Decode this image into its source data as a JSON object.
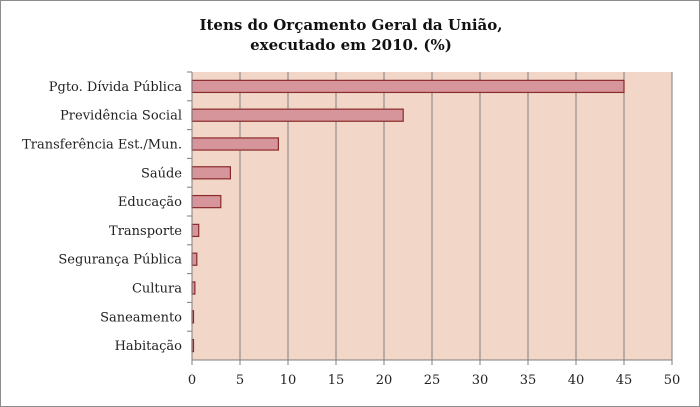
{
  "chart_data": {
    "type": "bar",
    "orientation": "horizontal",
    "title_lines": [
      "Itens do Orçamento Geral da União,",
      "executado em 2010. (%)"
    ],
    "categories": [
      "Pgto. Dívida Pública",
      "Previdência Social",
      "Transferência Est./Mun.",
      "Saúde",
      "Educação",
      "Transporte",
      "Segurança Pública",
      "Cultura",
      "Saneamento",
      "Habitação"
    ],
    "values": [
      45,
      22,
      9,
      4,
      3,
      0.7,
      0.5,
      0.3,
      0.1,
      0.1
    ],
    "xlim": [
      0,
      50
    ],
    "x_ticks": [
      0,
      5,
      10,
      15,
      20,
      25,
      30,
      35,
      40,
      45,
      50
    ],
    "xlabel": "",
    "ylabel": "",
    "grid": "vertical",
    "legend": "none",
    "colors": {
      "bar_fill": "#d5959b",
      "bar_stroke": "#8b2a2a",
      "plot_bg": "#f2d7c9",
      "grid": "#7f7f7f"
    }
  }
}
